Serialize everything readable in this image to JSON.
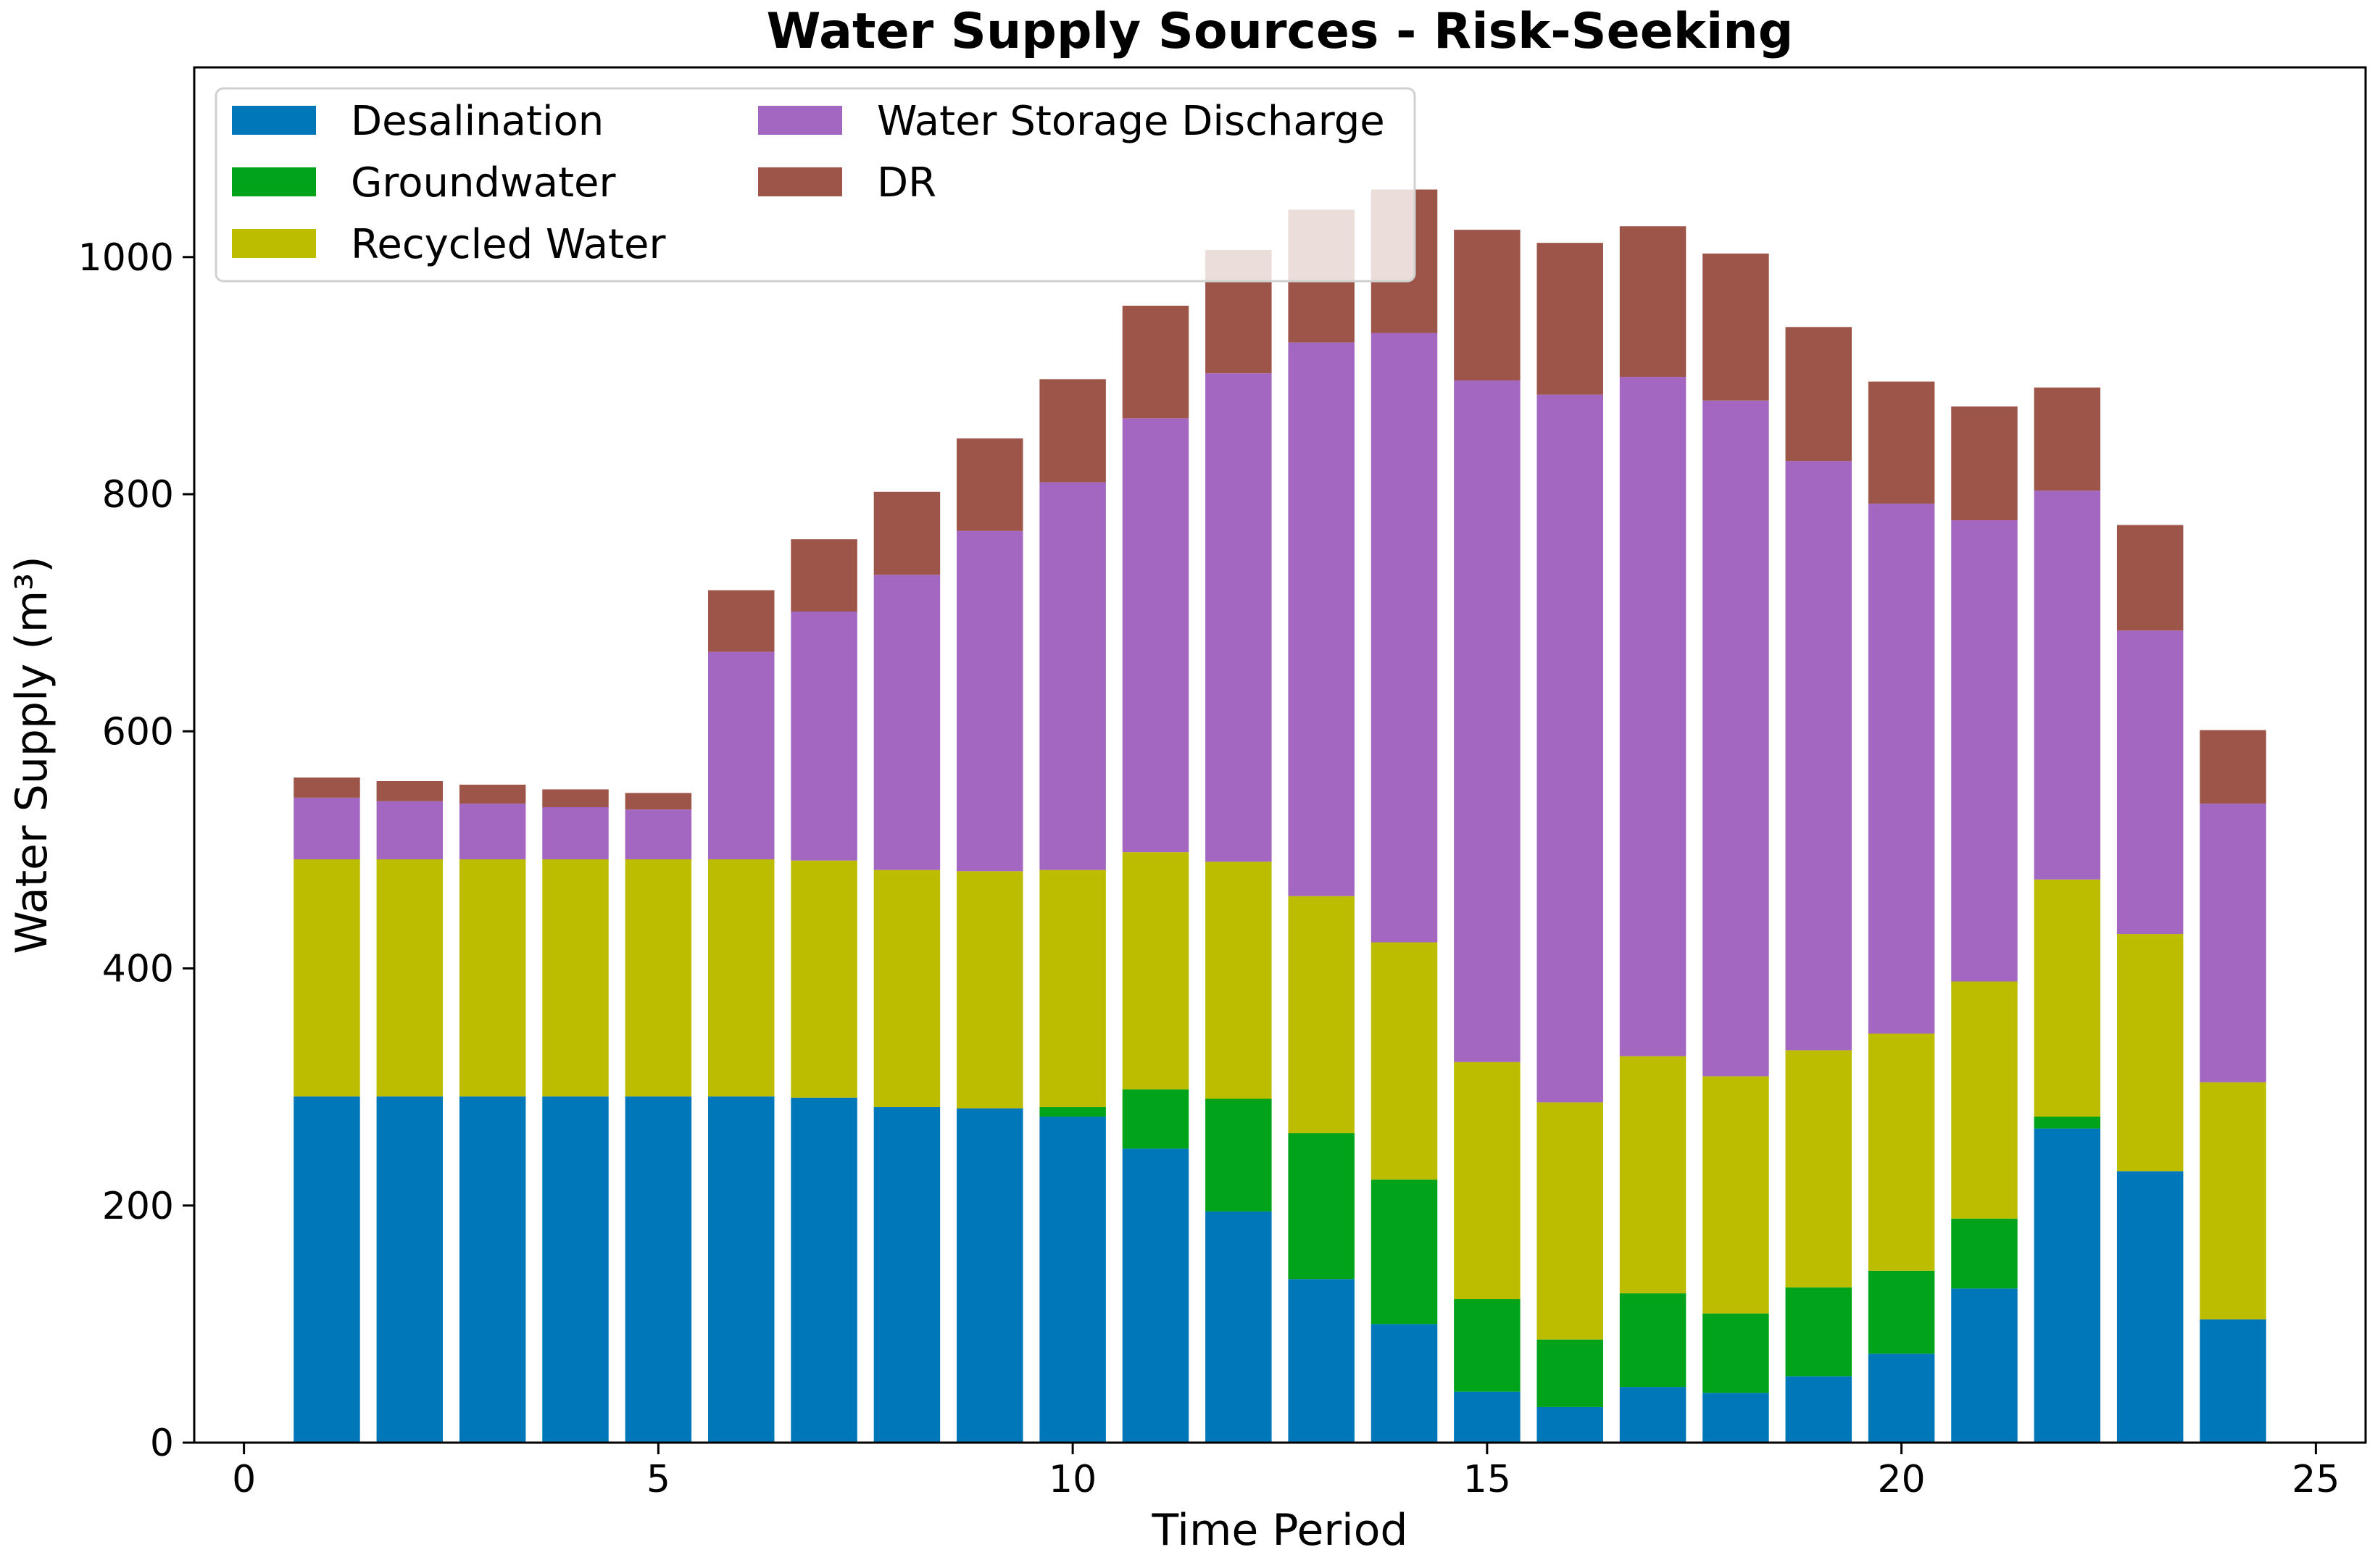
{
  "chart_data": {
    "type": "bar",
    "stacked": true,
    "title": "Water Supply Sources - Risk-Seeking",
    "xlabel": "Time Period",
    "ylabel": "Water Supply (m³)",
    "xlim": [
      -0.6,
      25.6
    ],
    "ylim": [
      0,
      1160
    ],
    "xticks": [
      0,
      5,
      10,
      15,
      20,
      25
    ],
    "yticks": [
      0,
      200,
      400,
      600,
      800,
      1000
    ],
    "x": [
      1,
      2,
      3,
      4,
      5,
      6,
      7,
      8,
      9,
      10,
      11,
      12,
      13,
      14,
      15,
      16,
      17,
      18,
      19,
      20,
      21,
      22,
      23,
      24
    ],
    "legend_position": "upper-left",
    "grid": false,
    "series": [
      {
        "name": "Desalination",
        "color": "#0077b8",
        "values": [
          292,
          292,
          292,
          292,
          292,
          292,
          291,
          283,
          282,
          275,
          248,
          195,
          138,
          100,
          43,
          30,
          47,
          42,
          56,
          75,
          130,
          265,
          229,
          104
        ]
      },
      {
        "name": "Groundwater",
        "color": "#00a31a",
        "values": [
          0,
          0,
          0,
          0,
          0,
          0,
          0,
          0,
          0,
          8,
          50,
          95,
          123,
          122,
          78,
          57,
          79,
          67,
          75,
          70,
          59,
          10,
          0,
          0
        ]
      },
      {
        "name": "Recycled Water",
        "color": "#bcbd00",
        "values": [
          200,
          200,
          200,
          200,
          200,
          200,
          200,
          200,
          200,
          200,
          200,
          200,
          200,
          200,
          200,
          200,
          200,
          200,
          200,
          200,
          200,
          200,
          200,
          200
        ]
      },
      {
        "name": "Water Storage Discharge",
        "color": "#a467c1",
        "values": [
          52,
          49,
          47,
          44,
          42,
          175,
          210,
          249,
          287,
          327,
          366,
          412,
          467,
          514,
          575,
          597,
          573,
          570,
          497,
          447,
          389,
          328,
          256,
          235
        ]
      },
      {
        "name": "DR",
        "color": "#9c5548",
        "values": [
          17,
          17,
          16,
          15,
          14,
          52,
          61,
          70,
          78,
          87,
          95,
          104,
          112,
          121,
          127,
          128,
          127,
          124,
          113,
          103,
          96,
          87,
          89,
          62
        ]
      }
    ]
  }
}
